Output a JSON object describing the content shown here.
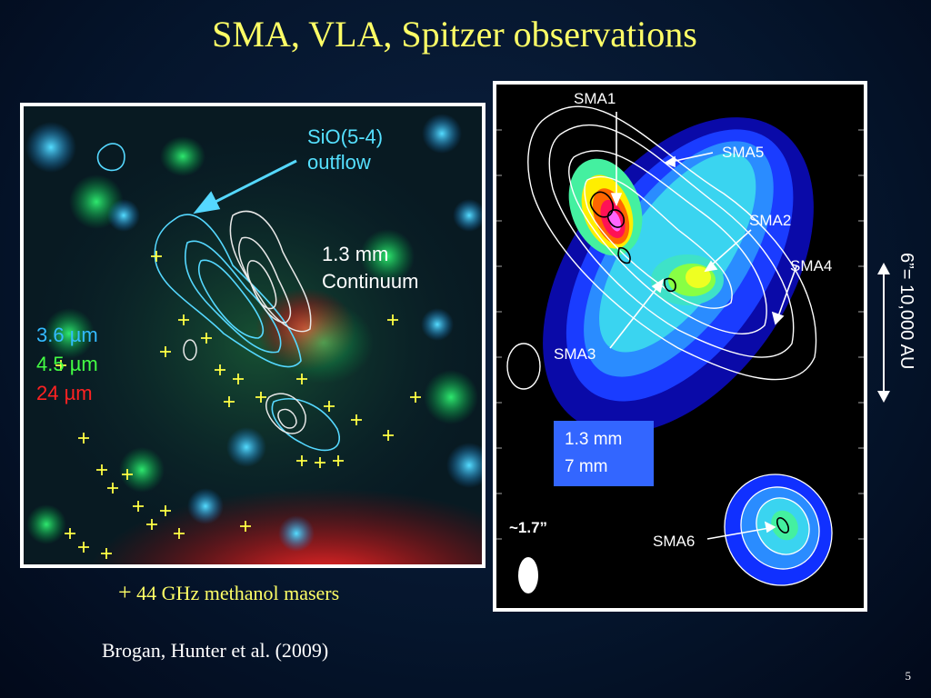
{
  "slide": {
    "title": "SMA, VLA, Spitzer observations",
    "page_number": "5",
    "reference": "Brogan, Hunter et al. (2009)"
  },
  "left_panel": {
    "outflow_label_line1": "SiO(5-4)",
    "outflow_label_line2": "outflow",
    "continuum_label_line1": "1.3 mm",
    "continuum_label_line2": "Continuum",
    "bands": [
      {
        "value": "3.6",
        "unit": "µm",
        "color": "#33bbff"
      },
      {
        "value": "4.5",
        "unit": "µm",
        "color": "#44ff44"
      },
      {
        "value": "24",
        "unit": "µm",
        "color": "#ff2222"
      }
    ],
    "maser_symbol": "+",
    "maser_caption": "44 GHz methanol masers"
  },
  "right_panel": {
    "sources": [
      "SMA1",
      "SMA5",
      "SMA2",
      "SMA4",
      "SMA3",
      "SMA6"
    ],
    "legend_line1": "1.3 mm",
    "legend_line2": "7 mm",
    "beam_label": "~1.7”"
  },
  "scale_bar": {
    "label": "6”= 10,000 AU"
  },
  "colors": {
    "title": "#ffff66",
    "maser": "#ffff66",
    "outflow": "#55e0ff",
    "legend_box": "#3366ff"
  }
}
